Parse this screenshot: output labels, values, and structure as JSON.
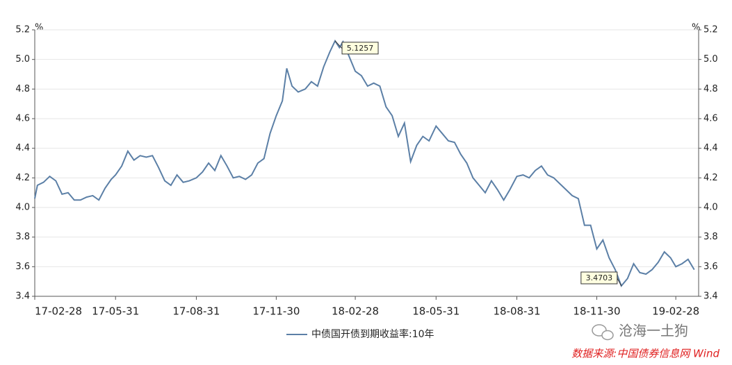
{
  "chart_data": {
    "type": "line",
    "unit": "%",
    "x": [
      "17-02-28",
      "17-03-03",
      "17-03-10",
      "17-03-17",
      "17-03-24",
      "17-03-31",
      "17-04-07",
      "17-04-14",
      "17-04-21",
      "17-04-28",
      "17-05-05",
      "17-05-12",
      "17-05-19",
      "17-05-26",
      "17-05-31",
      "17-06-07",
      "17-06-14",
      "17-06-21",
      "17-06-28",
      "17-07-05",
      "17-07-12",
      "17-07-19",
      "17-07-26",
      "17-08-02",
      "17-08-09",
      "17-08-16",
      "17-08-23",
      "17-08-31",
      "17-09-07",
      "17-09-14",
      "17-09-21",
      "17-09-28",
      "17-10-05",
      "17-10-12",
      "17-10-19",
      "17-10-26",
      "17-11-02",
      "17-11-09",
      "17-11-16",
      "17-11-23",
      "17-11-30",
      "17-12-07",
      "17-12-12",
      "17-12-18",
      "17-12-25",
      "18-01-02",
      "18-01-09",
      "18-01-16",
      "18-01-23",
      "18-01-30",
      "18-02-05",
      "18-02-10",
      "18-02-14",
      "18-02-28",
      "18-03-07",
      "18-03-14",
      "18-03-21",
      "18-03-28",
      "18-04-04",
      "18-04-11",
      "18-04-18",
      "18-04-25",
      "18-05-02",
      "18-05-09",
      "18-05-16",
      "18-05-23",
      "18-05-31",
      "18-06-07",
      "18-06-14",
      "18-06-21",
      "18-06-28",
      "18-07-05",
      "18-07-12",
      "18-07-19",
      "18-07-26",
      "18-08-02",
      "18-08-09",
      "18-08-16",
      "18-08-23",
      "18-08-31",
      "18-09-07",
      "18-09-14",
      "18-09-21",
      "18-09-28",
      "18-10-05",
      "18-10-12",
      "18-10-19",
      "18-10-26",
      "18-11-02",
      "18-11-09",
      "18-11-16",
      "18-11-23",
      "18-11-30",
      "18-12-07",
      "18-12-14",
      "18-12-21",
      "18-12-28",
      "19-01-04",
      "19-01-11",
      "19-01-18",
      "19-01-25",
      "19-02-01",
      "19-02-08",
      "19-02-15",
      "19-02-22",
      "19-02-28",
      "19-03-07",
      "19-03-14",
      "19-03-21"
    ],
    "series": [
      {
        "name": "中债国开债到期收益率:10年",
        "color": "#5b7fa6",
        "values": [
          4.06,
          4.15,
          4.17,
          4.21,
          4.18,
          4.09,
          4.1,
          4.05,
          4.05,
          4.07,
          4.08,
          4.05,
          4.13,
          4.19,
          4.22,
          4.28,
          4.38,
          4.32,
          4.35,
          4.34,
          4.35,
          4.27,
          4.18,
          4.15,
          4.22,
          4.17,
          4.18,
          4.2,
          4.24,
          4.3,
          4.25,
          4.35,
          4.28,
          4.2,
          4.21,
          4.19,
          4.22,
          4.3,
          4.33,
          4.5,
          4.62,
          4.72,
          4.94,
          4.82,
          4.78,
          4.8,
          4.85,
          4.82,
          4.95,
          5.05,
          5.1257,
          5.08,
          5.12,
          4.92,
          4.89,
          4.82,
          4.84,
          4.82,
          4.68,
          4.62,
          4.48,
          4.57,
          4.31,
          4.42,
          4.48,
          4.45,
          4.55,
          4.5,
          4.45,
          4.44,
          4.36,
          4.3,
          4.2,
          4.15,
          4.1,
          4.18,
          4.12,
          4.05,
          4.12,
          4.21,
          4.22,
          4.2,
          4.25,
          4.28,
          4.22,
          4.2,
          4.16,
          4.12,
          4.08,
          4.06,
          3.88,
          3.88,
          3.72,
          3.78,
          3.66,
          3.58,
          3.4703,
          3.52,
          3.62,
          3.56,
          3.55,
          3.58,
          3.63,
          3.7,
          3.66,
          3.6,
          3.62,
          3.65,
          3.58
        ]
      }
    ],
    "xlim": [
      "17-02-28",
      "19-03-26"
    ],
    "xticks": [
      "17-02-28",
      "17-05-31",
      "17-08-31",
      "17-11-30",
      "18-02-28",
      "18-05-31",
      "18-08-31",
      "18-11-30",
      "19-02-28"
    ],
    "ylim": [
      3.4,
      5.2
    ],
    "yticks": [
      3.4,
      3.6,
      3.8,
      4.0,
      4.2,
      4.4,
      4.6,
      4.8,
      5.0,
      5.2
    ],
    "grid": true,
    "annotations": [
      {
        "text": "5.1257",
        "x": "18-02-05",
        "y": 5.1257
      },
      {
        "text": "3.4703",
        "x": "18-12-28",
        "y": 3.4703
      }
    ],
    "watermark": "沧海一土狗",
    "source": "数据来源:中国债券信息网 Wind"
  }
}
